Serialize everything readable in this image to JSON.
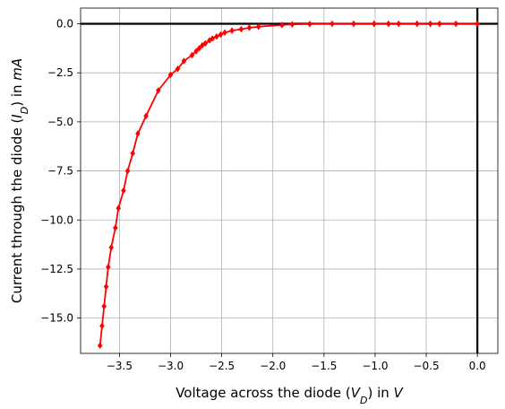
{
  "chart_data": {
    "type": "line",
    "title": "",
    "xlabel": "Voltage across the diode ($V_D$) in $V$",
    "ylabel": "Current through the diode ($I_D$) in $mA$",
    "xlim": [
      -3.88,
      0.2
    ],
    "ylim": [
      -16.8,
      0.8
    ],
    "xticks": [
      {
        "value": -3.5,
        "label": "−3.5"
      },
      {
        "value": -3.0,
        "label": "−3.0"
      },
      {
        "value": -2.5,
        "label": "−2.5"
      },
      {
        "value": -2.0,
        "label": "−2.0"
      },
      {
        "value": -1.5,
        "label": "−1.5"
      },
      {
        "value": -1.0,
        "label": "−1.0"
      },
      {
        "value": -0.5,
        "label": "−0.5"
      },
      {
        "value": 0.0,
        "label": "0.0"
      }
    ],
    "yticks": [
      {
        "value": 0.0,
        "label": "0.0"
      },
      {
        "value": -2.5,
        "label": "−2.5"
      },
      {
        "value": -5.0,
        "label": "−5.0"
      },
      {
        "value": -7.5,
        "label": "−7.5"
      },
      {
        "value": -10.0,
        "label": "−10.0"
      },
      {
        "value": -12.5,
        "label": "−12.5"
      },
      {
        "value": -15.0,
        "label": "−15.0"
      }
    ],
    "grid": true,
    "reference_lines": [
      {
        "axis": "x",
        "value": 0.0,
        "color": "#000000"
      },
      {
        "axis": "y",
        "value": 0.0,
        "color": "#000000"
      }
    ],
    "series": [
      {
        "color": "#ff0000",
        "marker": "diamond",
        "points": [
          {
            "x": -3.69,
            "y": -16.4
          },
          {
            "x": -3.67,
            "y": -15.4
          },
          {
            "x": -3.65,
            "y": -14.4
          },
          {
            "x": -3.63,
            "y": -13.4
          },
          {
            "x": -3.61,
            "y": -12.4
          },
          {
            "x": -3.58,
            "y": -11.4
          },
          {
            "x": -3.54,
            "y": -10.4
          },
          {
            "x": -3.51,
            "y": -9.4
          },
          {
            "x": -3.46,
            "y": -8.5
          },
          {
            "x": -3.42,
            "y": -7.5
          },
          {
            "x": -3.37,
            "y": -6.6
          },
          {
            "x": -3.32,
            "y": -5.6
          },
          {
            "x": -3.24,
            "y": -4.7
          },
          {
            "x": -3.12,
            "y": -3.4
          },
          {
            "x": -3.0,
            "y": -2.6
          },
          {
            "x": -2.93,
            "y": -2.3
          },
          {
            "x": -2.87,
            "y": -1.9
          },
          {
            "x": -2.79,
            "y": -1.6
          },
          {
            "x": -2.75,
            "y": -1.4
          },
          {
            "x": -2.72,
            "y": -1.25
          },
          {
            "x": -2.69,
            "y": -1.1
          },
          {
            "x": -2.66,
            "y": -1.0
          },
          {
            "x": -2.62,
            "y": -0.85
          },
          {
            "x": -2.59,
            "y": -0.75
          },
          {
            "x": -2.55,
            "y": -0.65
          },
          {
            "x": -2.51,
            "y": -0.55
          },
          {
            "x": -2.47,
            "y": -0.45
          },
          {
            "x": -2.4,
            "y": -0.35
          },
          {
            "x": -2.31,
            "y": -0.28
          },
          {
            "x": -2.23,
            "y": -0.2
          },
          {
            "x": -2.14,
            "y": -0.15
          },
          {
            "x": -1.91,
            "y": -0.06
          },
          {
            "x": -1.81,
            "y": -0.03
          },
          {
            "x": -1.64,
            "y": -0.01
          },
          {
            "x": -1.42,
            "y": 0.0
          },
          {
            "x": -1.21,
            "y": 0.0
          },
          {
            "x": -1.01,
            "y": 0.0
          },
          {
            "x": -0.87,
            "y": 0.0
          },
          {
            "x": -0.77,
            "y": 0.0
          },
          {
            "x": -0.59,
            "y": 0.0
          },
          {
            "x": -0.46,
            "y": 0.0
          },
          {
            "x": -0.37,
            "y": 0.0
          },
          {
            "x": -0.21,
            "y": 0.0
          },
          {
            "x": 0.0,
            "y": 0.0
          }
        ]
      }
    ]
  }
}
